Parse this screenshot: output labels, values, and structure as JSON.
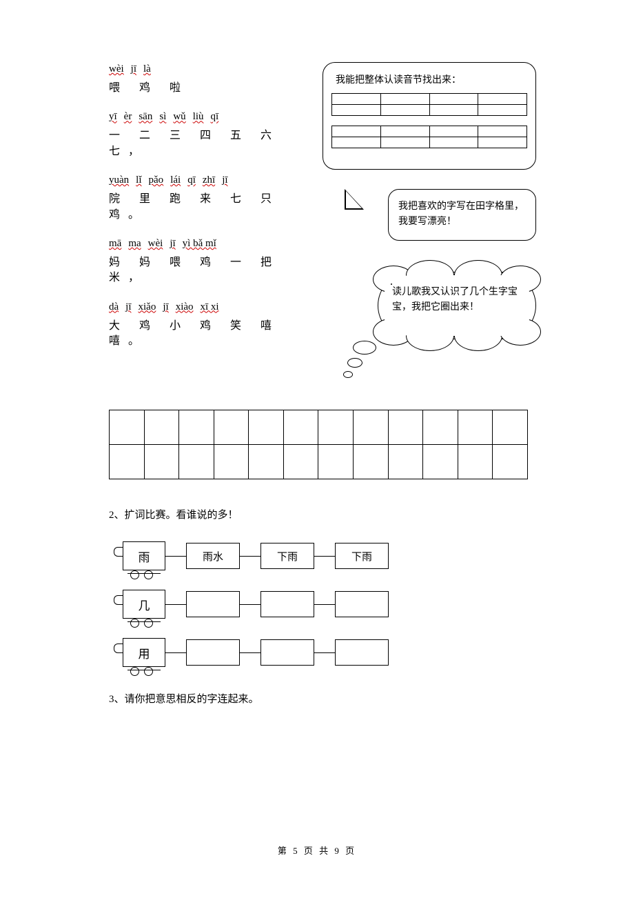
{
  "poem": [
    {
      "pinyin": [
        "wèi",
        "jī",
        "là"
      ],
      "hanzi": "喂  鸡  啦"
    },
    {
      "pinyin": [
        "yī",
        "èr",
        "sān",
        "sì",
        "wǔ",
        "liù",
        "qī"
      ],
      "hanzi": "一 二 三 四 五 六 七，"
    },
    {
      "pinyin": [
        "yuàn",
        "lǐ",
        "pǎo",
        "lái",
        "qī",
        "zhī",
        "jī"
      ],
      "hanzi": "院  里 跑  来 七 只 鸡。"
    },
    {
      "pinyin": [
        "mā",
        "ma",
        "wèi",
        "jī",
        "yì bǎ mǐ"
      ],
      "hanzi": "妈  妈  喂  鸡 一 把 米，"
    },
    {
      "pinyin": [
        "dà",
        "jī",
        "xiǎo",
        "jī",
        "xiào",
        "xī xi"
      ],
      "hanzi": "大 鸡  小  鸡  笑  嘻 嘻。"
    }
  ],
  "bubble1": {
    "title": "我能把整体认读音节找出来：",
    "rows1": 2,
    "rows2": 2,
    "cols": 4
  },
  "bubble2": {
    "text": "我把喜欢的字写在田字格里，我要写漂亮！"
  },
  "bubble3": {
    "text": "读儿歌我又认识了几个生字宝宝，我把它圈出来！"
  },
  "writing_grid": {
    "rows": 2,
    "cols": 12
  },
  "q2": {
    "prompt": "2、扩词比赛。看谁说的多！",
    "trains": [
      {
        "head": "雨",
        "cars": [
          "雨水",
          "下雨",
          "下雨"
        ]
      },
      {
        "head": "几",
        "cars": [
          "",
          "",
          ""
        ]
      },
      {
        "head": "用",
        "cars": [
          "",
          "",
          ""
        ]
      }
    ]
  },
  "q3": {
    "prompt": "3、请你把意思相反的字连起来。"
  },
  "footer": "第 5 页 共 9 页"
}
